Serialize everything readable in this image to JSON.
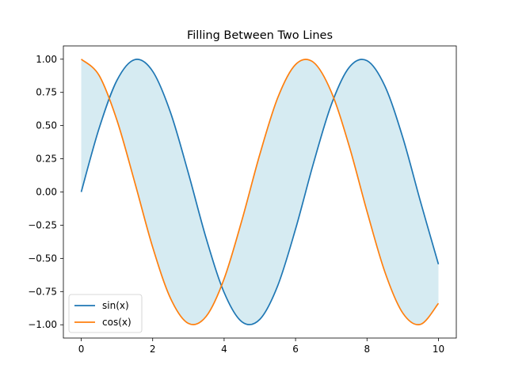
{
  "chart_data": {
    "type": "line",
    "title": "Filling Between Two Lines",
    "xlabel": "",
    "ylabel": "",
    "xlim": [
      -0.5,
      10.5
    ],
    "ylim": [
      -1.1,
      1.1
    ],
    "x_ticks": [
      0,
      2,
      4,
      6,
      8,
      10
    ],
    "x_tick_labels": [
      "0",
      "2",
      "4",
      "6",
      "8",
      "10"
    ],
    "y_ticks": [
      1.0,
      0.75,
      0.5,
      0.25,
      0.0,
      -0.25,
      -0.5,
      -0.75,
      -1.0
    ],
    "y_tick_labels": [
      "1.00",
      "0.75",
      "0.50",
      "0.25",
      "0.00",
      "−0.25",
      "−0.50",
      "−0.75",
      "−1.00"
    ],
    "grid": false,
    "legend_position": "lower-left",
    "fill_between": {
      "series": [
        "sin(x)",
        "cos(x)"
      ],
      "color": "#add8e6",
      "opacity": 0.5
    },
    "x": [
      0,
      0.5,
      1,
      1.5,
      2,
      2.5,
      3,
      3.5,
      4,
      4.5,
      5,
      5.5,
      6,
      6.5,
      7,
      7.5,
      8,
      8.5,
      9,
      9.5,
      10
    ],
    "series": [
      {
        "name": "sin(x)",
        "color": "#1f77b4",
        "values": [
          0.0,
          0.479,
          0.841,
          0.997,
          0.909,
          0.598,
          0.141,
          -0.351,
          -0.757,
          -0.978,
          -0.959,
          -0.706,
          -0.279,
          0.215,
          0.657,
          0.938,
          0.989,
          0.798,
          0.412,
          -0.075,
          -0.544
        ]
      },
      {
        "name": "cos(x)",
        "color": "#ff7f0e",
        "values": [
          1.0,
          0.878,
          0.54,
          0.071,
          -0.416,
          -0.801,
          -0.99,
          -0.936,
          -0.654,
          -0.211,
          0.284,
          0.709,
          0.96,
          0.977,
          0.754,
          0.347,
          -0.146,
          -0.602,
          -0.911,
          -0.997,
          -0.839
        ]
      }
    ]
  }
}
